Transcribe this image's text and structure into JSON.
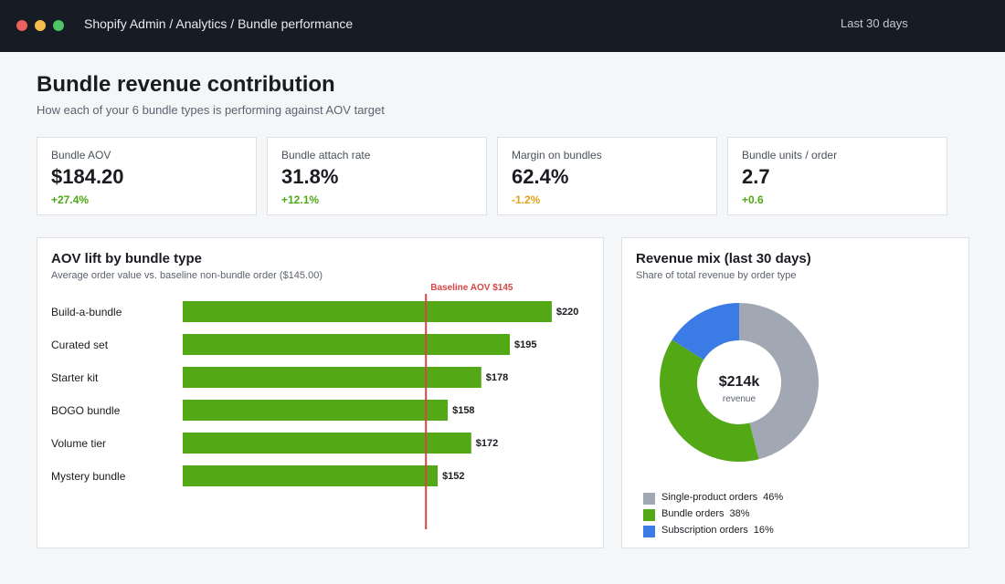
{
  "window": {
    "breadcrumb": "Shopify Admin / Analytics / Bundle performance",
    "date_range": "Last 30 days",
    "controls": {
      "close_color": "#ec5f5f",
      "minimize_color": "#f3be4f",
      "maximize_color": "#4fc468"
    }
  },
  "header": {
    "title": "Bundle revenue contribution",
    "subtitle": "How each of your 6 bundle types is performing against AOV target"
  },
  "kpis": [
    {
      "label": "Bundle AOV",
      "value": "$184.20",
      "delta": "+27.4%",
      "trend": "up"
    },
    {
      "label": "Bundle attach rate",
      "value": "31.8%",
      "delta": "+12.1%",
      "trend": "up"
    },
    {
      "label": "Margin on bundles",
      "value": "62.4%",
      "delta": "-1.2%",
      "trend": "down"
    },
    {
      "label": "Bundle units / order",
      "value": "2.7",
      "delta": "+0.6",
      "trend": "up"
    }
  ],
  "colors": {
    "up": "#4fa816",
    "down": "#e3a21a",
    "bar": "#52a815",
    "baseline": "#d84545",
    "single": "#a1a8b3",
    "bundle": "#52a815",
    "subscription": "#3b7be6"
  },
  "chart_data": [
    {
      "type": "bar",
      "orientation": "horizontal",
      "title": "AOV lift by bundle type",
      "subtitle": "Average order value vs. baseline non-bundle order ($145.00)",
      "categories": [
        "Build-a-bundle",
        "Curated set",
        "Starter kit",
        "BOGO bundle",
        "Volume tier",
        "Mystery bundle"
      ],
      "values": [
        220,
        195,
        178,
        158,
        172,
        152
      ],
      "value_labels": [
        "$220",
        "$195",
        "$178",
        "$158",
        "$172",
        "$152"
      ],
      "baseline": {
        "value": 145,
        "label": "Baseline AOV $145"
      },
      "xlim": [
        0,
        225
      ],
      "grid": false
    },
    {
      "type": "pie",
      "style": "donut",
      "title": "Revenue mix (last 30 days)",
      "subtitle": "Share of total revenue by order type",
      "center_value": "$214k",
      "center_label": "revenue",
      "slices": [
        {
          "name": "Single-product orders",
          "value": 46,
          "label": "46%",
          "color_key": "single"
        },
        {
          "name": "Bundle orders",
          "value": 38,
          "label": "38%",
          "color_key": "bundle"
        },
        {
          "name": "Subscription orders",
          "value": 16,
          "label": "16%",
          "color_key": "subscription"
        }
      ],
      "legend_position": "bottom-left"
    }
  ]
}
